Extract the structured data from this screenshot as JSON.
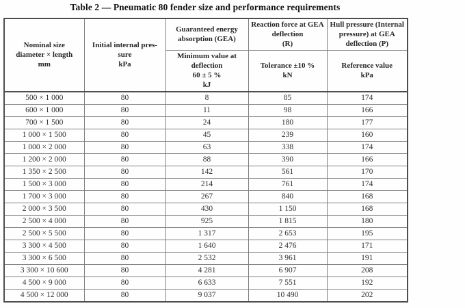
{
  "title": "Table 2 — Pneumatic 80 fender size and performance requirements",
  "colors": {
    "border_outer": "#4d4d4d",
    "border_inner": "#7f7f7f",
    "text": "#262626",
    "background": "#fefefe"
  },
  "table": {
    "header": {
      "nominal_size": "Nominal size\ndiameter × length\nmm",
      "initial_pressure": "Initial internal pres-\nsure\nkPa",
      "gea": "Guaranteed energy\nabsorption (GEA)",
      "gea_sub": "Minimum value at\ndeflection\n60 ± 5 %\nkJ",
      "reaction_force": "Reaction force at GEA\ndeflection\n(R)",
      "reaction_sub": "Tolerance ±10 %\nkN",
      "hull_pressure": "Hull pressure (Internal\npressure) at GEA\ndeflection (P)",
      "hull_sub": "Reference value\nkPa"
    },
    "rows": [
      [
        "500 × 1 000",
        "80",
        "8",
        "85",
        "174"
      ],
      [
        "600 × 1 000",
        "80",
        "11",
        "98",
        "166"
      ],
      [
        "700 × 1 500",
        "80",
        "24",
        "180",
        "177"
      ],
      [
        "1 000 × 1 500",
        "80",
        "45",
        "239",
        "160"
      ],
      [
        "1 000 × 2 000",
        "80",
        "63",
        "338",
        "174"
      ],
      [
        "1 200 × 2 000",
        "80",
        "88",
        "390",
        "166"
      ],
      [
        "1 350 × 2 500",
        "80",
        "142",
        "561",
        "170"
      ],
      [
        "1 500 × 3 000",
        "80",
        "214",
        "761",
        "174"
      ],
      [
        "1 700 × 3 000",
        "80",
        "267",
        "840",
        "168"
      ],
      [
        "2 000 × 3 500",
        "80",
        "430",
        "1 150",
        "168"
      ],
      [
        "2 500 × 4 000",
        "80",
        "925",
        "1 815",
        "180"
      ],
      [
        "2 500 × 5 500",
        "80",
        "1 317",
        "2 653",
        "195"
      ],
      [
        "3 300 × 4 500",
        "80",
        "1 640",
        "2 476",
        "171"
      ],
      [
        "3 300 × 6 500",
        "80",
        "2 532",
        "3 961",
        "191"
      ],
      [
        "3 300 × 10 600",
        "80",
        "4 281",
        "6 907",
        "208"
      ],
      [
        "4 500 × 9 000",
        "80",
        "6 633",
        "7 551",
        "192"
      ],
      [
        "4 500 × 12 000",
        "80",
        "9 037",
        "10 490",
        "202"
      ]
    ]
  }
}
